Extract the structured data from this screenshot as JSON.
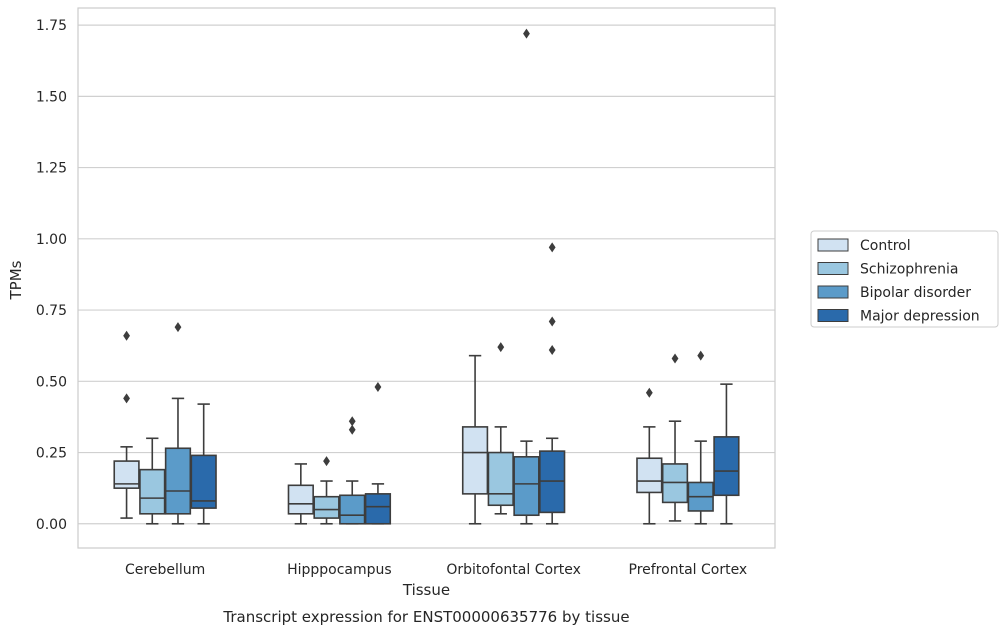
{
  "chart_data": {
    "type": "box",
    "xlabel": "Tissue",
    "ylabel": "TPMs",
    "caption": "Transcript expression for ENST00000635776 by tissue",
    "ylim": [
      -0.085,
      1.81
    ],
    "yticks": [
      "0.00",
      "0.25",
      "0.50",
      "0.75",
      "1.00",
      "1.25",
      "1.50",
      "1.75"
    ],
    "categories": [
      "Cerebellum",
      "Hipppocampus",
      "Orbitofontal Cortex",
      "Prefrontal Cortex"
    ],
    "grid": true,
    "legend_position": "right",
    "series": [
      {
        "name": "Control",
        "color": "#d1e2f2",
        "boxes": [
          {
            "whislo": 0.02,
            "q1": 0.125,
            "med": 0.14,
            "q3": 0.22,
            "whishi": 0.27,
            "fliers": [
              0.44,
              0.66
            ]
          },
          {
            "whislo": 0.0,
            "q1": 0.035,
            "med": 0.07,
            "q3": 0.135,
            "whishi": 0.21,
            "fliers": []
          },
          {
            "whislo": 0.0,
            "q1": 0.105,
            "med": 0.25,
            "q3": 0.34,
            "whishi": 0.59,
            "fliers": []
          },
          {
            "whislo": 0.0,
            "q1": 0.11,
            "med": 0.15,
            "q3": 0.23,
            "whishi": 0.34,
            "fliers": [
              0.46
            ]
          }
        ]
      },
      {
        "name": "Schizophrenia",
        "color": "#9ac7e0",
        "boxes": [
          {
            "whislo": 0.0,
            "q1": 0.035,
            "med": 0.09,
            "q3": 0.19,
            "whishi": 0.3,
            "fliers": []
          },
          {
            "whislo": 0.0,
            "q1": 0.02,
            "med": 0.05,
            "q3": 0.095,
            "whishi": 0.15,
            "fliers": [
              0.22
            ]
          },
          {
            "whislo": 0.035,
            "q1": 0.065,
            "med": 0.105,
            "q3": 0.25,
            "whishi": 0.34,
            "fliers": [
              0.62
            ]
          },
          {
            "whislo": 0.01,
            "q1": 0.075,
            "med": 0.145,
            "q3": 0.21,
            "whishi": 0.36,
            "fliers": [
              0.58
            ]
          }
        ]
      },
      {
        "name": "Bipolar disorder",
        "color": "#5b9bc9",
        "boxes": [
          {
            "whislo": 0.0,
            "q1": 0.035,
            "med": 0.115,
            "q3": 0.265,
            "whishi": 0.44,
            "fliers": [
              0.69
            ]
          },
          {
            "whislo": 0.0,
            "q1": 0.0,
            "med": 0.03,
            "q3": 0.1,
            "whishi": 0.15,
            "fliers": [
              0.33,
              0.36
            ]
          },
          {
            "whislo": 0.0,
            "q1": 0.03,
            "med": 0.14,
            "q3": 0.235,
            "whishi": 0.29,
            "fliers": [
              1.72
            ]
          },
          {
            "whislo": 0.0,
            "q1": 0.045,
            "med": 0.095,
            "q3": 0.145,
            "whishi": 0.29,
            "fliers": [
              0.59
            ]
          }
        ]
      },
      {
        "name": "Major depression",
        "color": "#2a6aab",
        "boxes": [
          {
            "whislo": 0.0,
            "q1": 0.055,
            "med": 0.08,
            "q3": 0.24,
            "whishi": 0.42,
            "fliers": []
          },
          {
            "whislo": 0.0,
            "q1": 0.0,
            "med": 0.06,
            "q3": 0.105,
            "whishi": 0.14,
            "fliers": [
              0.48
            ]
          },
          {
            "whislo": 0.0,
            "q1": 0.04,
            "med": 0.15,
            "q3": 0.255,
            "whishi": 0.3,
            "fliers": [
              0.61,
              0.71,
              0.97
            ]
          },
          {
            "whislo": 0.0,
            "q1": 0.1,
            "med": 0.185,
            "q3": 0.305,
            "whishi": 0.49,
            "fliers": []
          }
        ]
      }
    ]
  }
}
